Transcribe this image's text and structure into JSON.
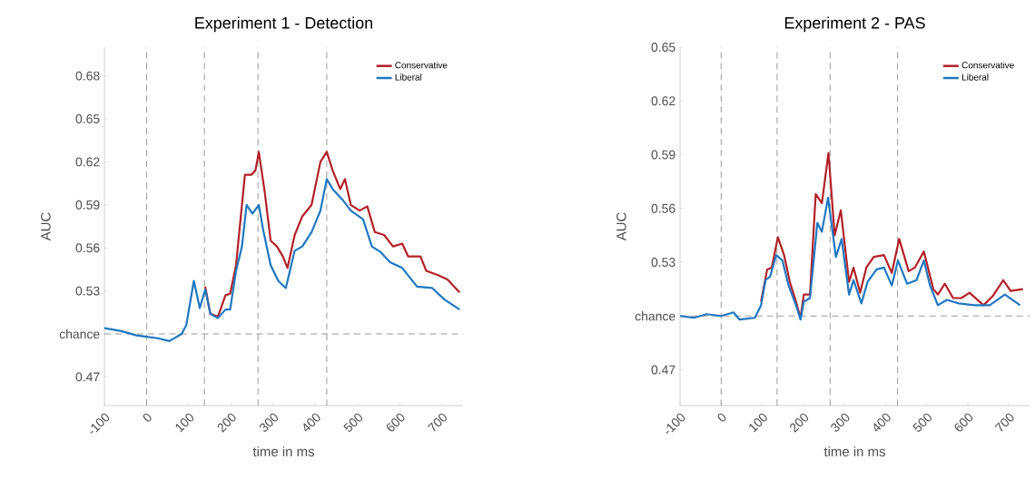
{
  "chart_data": [
    {
      "type": "line",
      "title": "Experiment 1 - Detection",
      "xlabel": "time in ms",
      "ylabel": "AUC",
      "xlim": [
        -100,
        750
      ],
      "xticks": [
        -100,
        0,
        100,
        200,
        300,
        400,
        500,
        600,
        700
      ],
      "ylim": [
        0.45,
        0.7
      ],
      "yticks": [
        0.47,
        {
          "value": 0.5,
          "label": "chance"
        },
        0.53,
        0.56,
        0.59,
        0.62,
        0.65,
        0.68
      ],
      "legend": "top right",
      "ref_lines": [
        {
          "axis": "x",
          "value": 0,
          "line_style": "dashed",
          "color": "#808080"
        },
        {
          "axis": "x",
          "value": 137,
          "line_style": "dashed",
          "color": "#808080"
        },
        {
          "axis": "x",
          "value": 264,
          "line_style": "dashed",
          "color": "#808080"
        },
        {
          "axis": "x",
          "value": 427,
          "line_style": "dashed",
          "color": "#808080"
        },
        {
          "axis": "y",
          "value": 0.5,
          "line_style": "dashed",
          "color": "#808080"
        }
      ],
      "series": [
        {
          "name": "Conservative",
          "color": "#b22028",
          "x": [
            139,
            151,
            169,
            187,
            198,
            212,
            233,
            248,
            258,
            266,
            280,
            294,
            309,
            323,
            334,
            351,
            369,
            391,
            412,
            427,
            441,
            459,
            470,
            484,
            505,
            523,
            541,
            563,
            584,
            606,
            620,
            649,
            663,
            691,
            713,
            742
          ],
          "values": [
            0.533,
            0.514,
            0.512,
            0.527,
            0.528,
            0.548,
            0.611,
            0.611,
            0.614,
            0.627,
            0.599,
            0.565,
            0.561,
            0.554,
            0.546,
            0.569,
            0.582,
            0.59,
            0.62,
            0.627,
            0.614,
            0.601,
            0.608,
            0.59,
            0.586,
            0.589,
            0.571,
            0.569,
            0.561,
            0.563,
            0.554,
            0.554,
            0.544,
            0.541,
            0.538,
            0.529
          ]
        },
        {
          "name": "Liberal",
          "color": "#1f77c0",
          "x": [
            -100,
            -60,
            -24,
            0,
            26,
            54,
            83,
            94,
            112,
            126,
            139,
            151,
            169,
            187,
            198,
            212,
            226,
            237,
            251,
            266,
            276,
            294,
            312,
            330,
            351,
            369,
            391,
            412,
            427,
            441,
            466,
            484,
            513,
            534,
            555,
            577,
            606,
            641,
            677,
            706,
            742
          ],
          "values": [
            0.504,
            0.502,
            0.499,
            0.498,
            0.497,
            0.495,
            0.5,
            0.506,
            0.537,
            0.518,
            0.531,
            0.514,
            0.511,
            0.517,
            0.517,
            0.544,
            0.561,
            0.59,
            0.584,
            0.59,
            0.573,
            0.548,
            0.537,
            0.532,
            0.558,
            0.561,
            0.571,
            0.586,
            0.608,
            0.601,
            0.593,
            0.586,
            0.58,
            0.561,
            0.557,
            0.55,
            0.546,
            0.533,
            0.532,
            0.524,
            0.517
          ]
        }
      ]
    },
    {
      "type": "line",
      "title": "Experiment 2 - PAS",
      "xlabel": "time in ms",
      "ylabel": "AUC",
      "xlim": [
        -100,
        750
      ],
      "xticks": [
        -100,
        0,
        100,
        200,
        300,
        400,
        500,
        600,
        700
      ],
      "ylim": [
        0.45,
        0.65
      ],
      "yticks": [
        0.47,
        {
          "value": 0.5,
          "label": "chance"
        },
        0.53,
        0.56,
        0.59,
        0.62,
        0.65
      ],
      "legend": "top right",
      "ref_lines": [
        {
          "axis": "x",
          "value": 0,
          "line_style": "dashed",
          "color": "#808080"
        },
        {
          "axis": "x",
          "value": 136,
          "line_style": "dashed",
          "color": "#808080"
        },
        {
          "axis": "x",
          "value": 265,
          "line_style": "dashed",
          "color": "#808080"
        },
        {
          "axis": "x",
          "value": 429,
          "line_style": "dashed",
          "color": "#808080"
        },
        {
          "axis": "y",
          "value": 0.5,
          "line_style": "dashed",
          "color": "#808080"
        }
      ],
      "series": [
        {
          "name": "Conservative",
          "color": "#b22028",
          "x": [
            97,
            112,
            123,
            138,
            153,
            167,
            182,
            193,
            201,
            216,
            230,
            245,
            261,
            276,
            291,
            311,
            322,
            338,
            353,
            371,
            396,
            415,
            433,
            456,
            471,
            493,
            516,
            527,
            544,
            564,
            584,
            604,
            638,
            660,
            686,
            704,
            734
          ],
          "values": [
            0.508,
            0.526,
            0.527,
            0.544,
            0.534,
            0.519,
            0.508,
            0.499,
            0.512,
            0.512,
            0.568,
            0.563,
            0.591,
            0.545,
            0.559,
            0.519,
            0.527,
            0.513,
            0.527,
            0.533,
            0.534,
            0.524,
            0.543,
            0.525,
            0.527,
            0.536,
            0.515,
            0.512,
            0.518,
            0.51,
            0.51,
            0.513,
            0.506,
            0.511,
            0.52,
            0.514,
            0.515
          ]
        },
        {
          "name": "Liberal",
          "color": "#1f77c0",
          "x": [
            -100,
            -66,
            -36,
            0,
            30,
            45,
            82,
            97,
            108,
            119,
            134,
            149,
            164,
            182,
            193,
            201,
            216,
            234,
            245,
            260,
            279,
            293,
            311,
            322,
            341,
            356,
            378,
            396,
            415,
            430,
            452,
            475,
            493,
            508,
            527,
            549,
            578,
            616,
            653,
            690,
            727
          ],
          "values": [
            0.5,
            0.499,
            0.501,
            0.5,
            0.502,
            0.498,
            0.499,
            0.506,
            0.52,
            0.522,
            0.534,
            0.531,
            0.517,
            0.506,
            0.498,
            0.508,
            0.51,
            0.552,
            0.547,
            0.566,
            0.533,
            0.543,
            0.512,
            0.52,
            0.507,
            0.519,
            0.526,
            0.527,
            0.517,
            0.531,
            0.518,
            0.52,
            0.531,
            0.517,
            0.506,
            0.509,
            0.507,
            0.506,
            0.506,
            0.512,
            0.506
          ]
        }
      ]
    }
  ]
}
